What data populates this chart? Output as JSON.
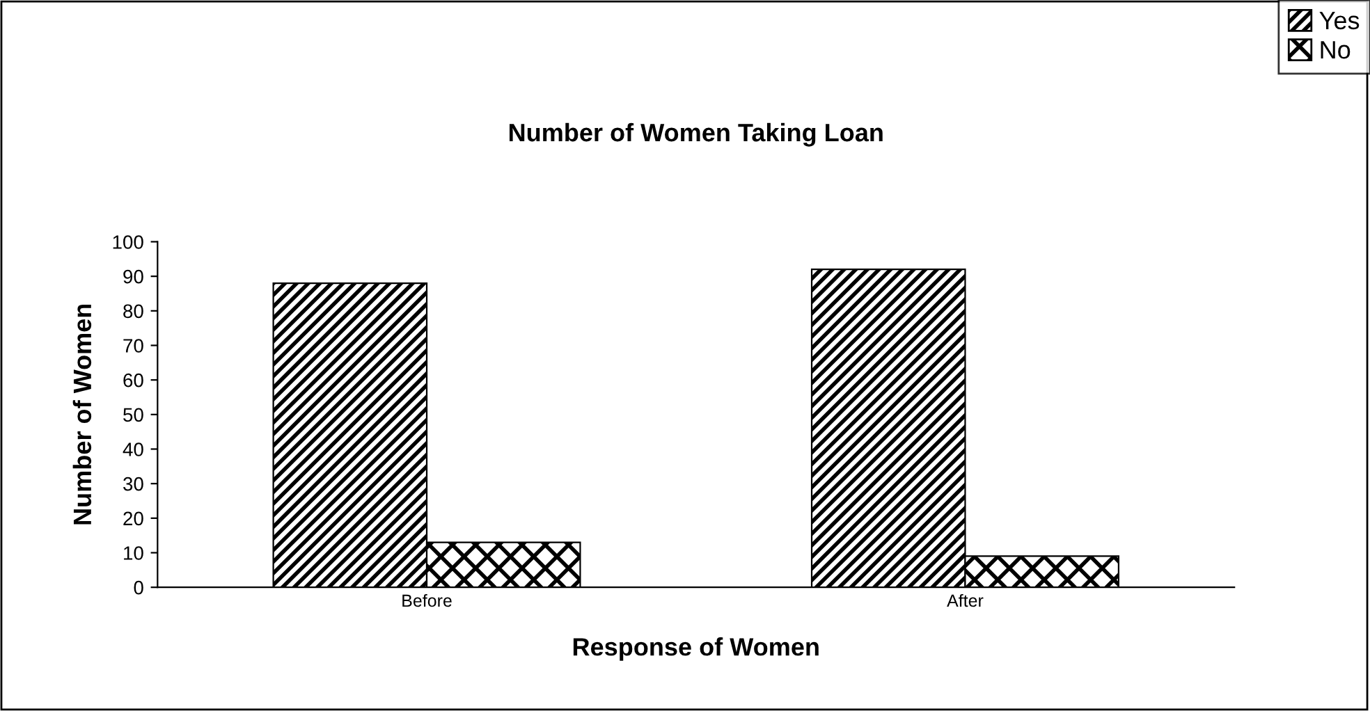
{
  "chart_data": {
    "type": "bar",
    "title": "Number of Women Taking Loan",
    "xlabel": "Response of Women",
    "ylabel": "Number of Women",
    "categories": [
      "Before",
      "After"
    ],
    "series": [
      {
        "name": "Yes",
        "color": "#000000",
        "values": [
          88,
          92
        ]
      },
      {
        "name": "No",
        "color": "#000000",
        "values": [
          13,
          9
        ]
      }
    ],
    "ylim": [
      0,
      100
    ],
    "yticks": [
      0,
      10,
      20,
      30,
      40,
      50,
      60,
      70,
      80,
      90,
      100
    ],
    "grid": false,
    "legend": "top right"
  }
}
